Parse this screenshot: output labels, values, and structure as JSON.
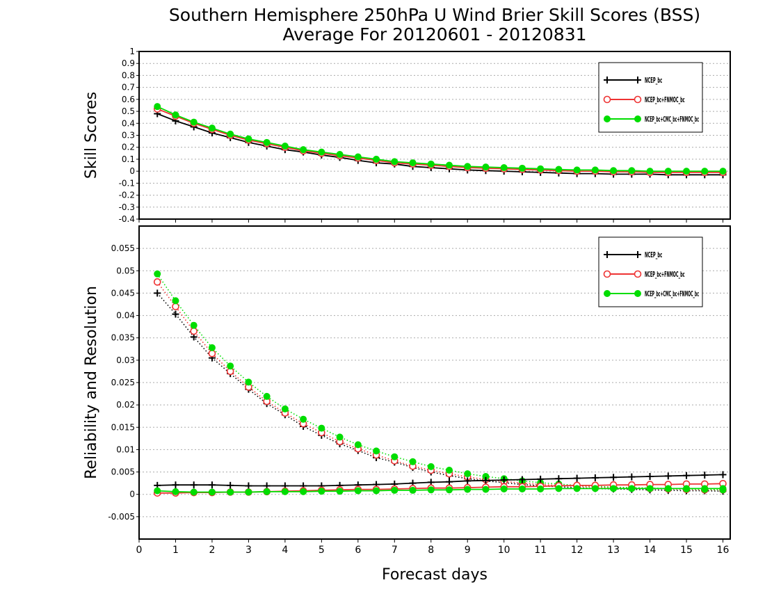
{
  "title_line1": "Southern Hemisphere 250hPa U Wind Brier Skill Scores (BSS)",
  "title_line2": "Average For 20120601 - 20120831",
  "colors": {
    "black": "#000000",
    "red": "#ee3333",
    "green": "#00dd00"
  },
  "chart_data": [
    {
      "type": "line",
      "ylabel": "Skill Scores",
      "ylim": [
        -0.4,
        1
      ],
      "yticks": [
        "1",
        "0.9",
        "0.8",
        "0.7",
        "0.6",
        "0.5",
        "0.4",
        "0.3",
        "0.2",
        "0.1",
        "0",
        "-0.1",
        "-0.2",
        "-0.3",
        "-0.4"
      ],
      "xlim": [
        0,
        16.2
      ],
      "grid": true,
      "legend_position": "top-right",
      "x": [
        0.5,
        1,
        1.5,
        2,
        2.5,
        3,
        3.5,
        4,
        4.5,
        5,
        5.5,
        6,
        6.5,
        7,
        7.5,
        8,
        8.5,
        9,
        9.5,
        10,
        10.5,
        11,
        11.5,
        12,
        12.5,
        13,
        13.5,
        14,
        14.5,
        15,
        15.5,
        16
      ],
      "series": [
        {
          "name": "NCEP_bc",
          "color": "black",
          "marker": "plus",
          "line": "solid",
          "values": [
            0.48,
            0.42,
            0.37,
            0.32,
            0.28,
            0.24,
            0.21,
            0.18,
            0.16,
            0.135,
            0.115,
            0.09,
            0.07,
            0.06,
            0.04,
            0.03,
            0.02,
            0.01,
            0.005,
            0,
            -0.005,
            -0.01,
            -0.015,
            -0.02,
            -0.02,
            -0.025,
            -0.025,
            -0.025,
            -0.03,
            -0.03,
            -0.03,
            -0.03
          ]
        },
        {
          "name": "NCEP_bc+FNMOC_bc",
          "color": "red",
          "marker": "circle-open",
          "line": "solid",
          "values": [
            0.52,
            0.46,
            0.4,
            0.35,
            0.3,
            0.26,
            0.23,
            0.2,
            0.17,
            0.15,
            0.13,
            0.11,
            0.09,
            0.07,
            0.06,
            0.05,
            0.04,
            0.03,
            0.025,
            0.02,
            0.015,
            0.01,
            0.005,
            0,
            0,
            -0.005,
            -0.005,
            -0.01,
            -0.01,
            -0.01,
            -0.01,
            -0.01
          ]
        },
        {
          "name": "NCEP_bc+CMC_bc+FNMOC_bc",
          "color": "green",
          "marker": "dot",
          "line": "solid",
          "values": [
            0.54,
            0.47,
            0.41,
            0.36,
            0.31,
            0.27,
            0.24,
            0.21,
            0.18,
            0.16,
            0.14,
            0.12,
            0.1,
            0.08,
            0.07,
            0.06,
            0.05,
            0.04,
            0.035,
            0.03,
            0.025,
            0.02,
            0.015,
            0.01,
            0.01,
            0.005,
            0.005,
            0,
            0,
            0,
            0,
            0
          ]
        }
      ]
    },
    {
      "type": "line",
      "ylabel": "Reliability and Resolution",
      "xlabel": "Forecast days",
      "ylim": [
        -0.01,
        0.06
      ],
      "yticks": [
        "0.055",
        "0.05",
        "0.045",
        "0.04",
        "0.035",
        "0.03",
        "0.025",
        "0.02",
        "0.015",
        "0.01",
        "0.005",
        "0",
        "-0.005"
      ],
      "xticks": [
        "0",
        "1",
        "2",
        "3",
        "4",
        "5",
        "6",
        "7",
        "8",
        "9",
        "10",
        "11",
        "12",
        "13",
        "14",
        "15",
        "16"
      ],
      "xlim": [
        0,
        16.2
      ],
      "grid": true,
      "legend_position": "top-right",
      "x": [
        0.5,
        1,
        1.5,
        2,
        2.5,
        3,
        3.5,
        4,
        4.5,
        5,
        5.5,
        6,
        6.5,
        7,
        7.5,
        8,
        8.5,
        9,
        9.5,
        10,
        10.5,
        11,
        11.5,
        12,
        12.5,
        13,
        13.5,
        14,
        14.5,
        15,
        15.5,
        16
      ],
      "resolution_series": [
        {
          "name": "NCEP_bc",
          "color": "black",
          "marker": "plus",
          "line": "dotted",
          "values": [
            0.045,
            0.0403,
            0.0352,
            0.0305,
            0.027,
            0.0235,
            0.0203,
            0.0178,
            0.0152,
            0.0132,
            0.0113,
            0.0098,
            0.0082,
            0.0072,
            0.006,
            0.005,
            0.0042,
            0.0035,
            0.003,
            0.0026,
            0.0022,
            0.0019,
            0.0017,
            0.0015,
            0.0013,
            0.0012,
            0.0011,
            0.001,
            0.0009,
            0.0008,
            0.0008,
            0.0007
          ]
        },
        {
          "name": "NCEP_bc+FNMOC_bc",
          "color": "red",
          "marker": "circle-open",
          "line": "dotted",
          "values": [
            0.0475,
            0.042,
            0.0365,
            0.0315,
            0.0275,
            0.024,
            0.0208,
            0.0182,
            0.0158,
            0.0138,
            0.0118,
            0.0102,
            0.0088,
            0.0075,
            0.0063,
            0.0054,
            0.0046,
            0.0039,
            0.0033,
            0.0029,
            0.0025,
            0.0022,
            0.002,
            0.0018,
            0.0016,
            0.0015,
            0.0014,
            0.0013,
            0.0012,
            0.0011,
            0.001,
            0.001
          ]
        },
        {
          "name": "NCEP_bc+CMC_bc+FNMOC_bc",
          "color": "green",
          "marker": "dot",
          "line": "dotted",
          "values": [
            0.0493,
            0.0433,
            0.0378,
            0.0328,
            0.0287,
            0.0251,
            0.0219,
            0.0191,
            0.0168,
            0.0148,
            0.0128,
            0.0111,
            0.0097,
            0.0084,
            0.0073,
            0.0062,
            0.0054,
            0.0046,
            0.004,
            0.0035,
            0.003,
            0.0026,
            0.0023,
            0.002,
            0.0018,
            0.0016,
            0.0015,
            0.0014,
            0.0013,
            0.0012,
            0.0011,
            0.001
          ]
        }
      ],
      "reliability_series": [
        {
          "name": "NCEP_bc",
          "color": "black",
          "marker": "plus",
          "line": "solid",
          "values": [
            0.002,
            0.0021,
            0.0021,
            0.0021,
            0.002,
            0.0019,
            0.0019,
            0.0019,
            0.0019,
            0.0019,
            0.002,
            0.0021,
            0.0022,
            0.0023,
            0.0025,
            0.0027,
            0.0028,
            0.003,
            0.0031,
            0.0032,
            0.0033,
            0.0034,
            0.0035,
            0.0036,
            0.0037,
            0.0038,
            0.0039,
            0.004,
            0.0041,
            0.0042,
            0.0043,
            0.0044
          ]
        },
        {
          "name": "NCEP_bc+FNMOC_bc",
          "color": "red",
          "marker": "circle-open",
          "line": "solid",
          "values": [
            0.0003,
            0.0003,
            0.0004,
            0.0004,
            0.0005,
            0.0005,
            0.0006,
            0.0007,
            0.0008,
            0.0009,
            0.001,
            0.0011,
            0.0011,
            0.0012,
            0.0013,
            0.0014,
            0.0014,
            0.0015,
            0.0016,
            0.0017,
            0.0017,
            0.0018,
            0.0019,
            0.002,
            0.002,
            0.0021,
            0.0021,
            0.0022,
            0.0022,
            0.0023,
            0.0023,
            0.0024
          ]
        },
        {
          "name": "NCEP_bc+CMC_bc+FNMOC_bc",
          "color": "green",
          "marker": "dot",
          "line": "solid",
          "values": [
            0.0008,
            0.0006,
            0.0005,
            0.0005,
            0.0005,
            0.0005,
            0.0006,
            0.0006,
            0.0006,
            0.0007,
            0.0007,
            0.0008,
            0.0008,
            0.0009,
            0.0009,
            0.001,
            0.001,
            0.0011,
            0.0011,
            0.0012,
            0.0012,
            0.0012,
            0.0013,
            0.0013,
            0.0013,
            0.0013,
            0.0013,
            0.0013,
            0.0013,
            0.0013,
            0.0013,
            0.0013
          ]
        }
      ]
    }
  ]
}
